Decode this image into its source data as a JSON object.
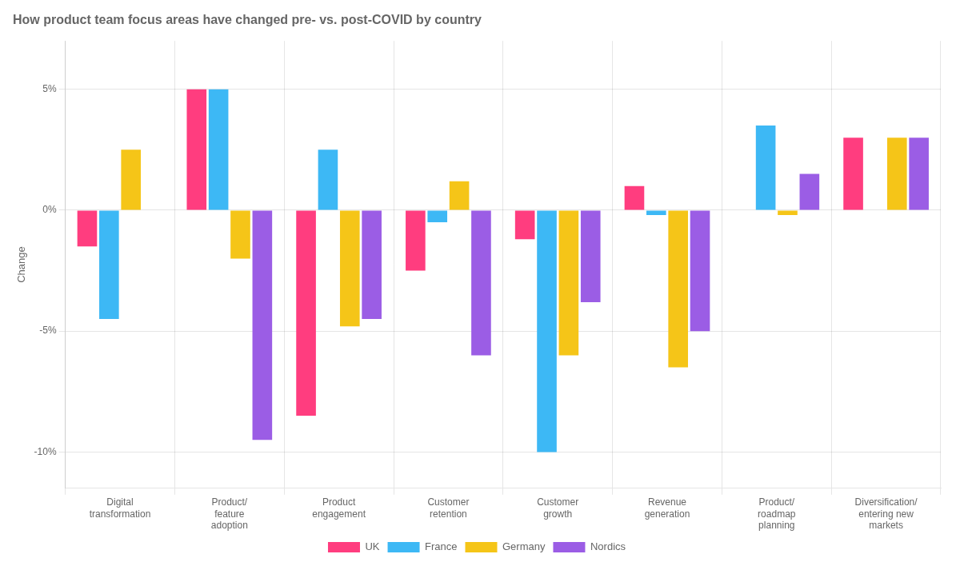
{
  "chart_data": {
    "type": "bar",
    "title": "How product team focus areas have changed pre- vs. post-COVID by country",
    "categories": [
      "Digital\ntransformation",
      "Product/\nfeature\nadoption",
      "Product\nengagement",
      "Customer\nretention",
      "Customer\ngrowth",
      "Revenue\ngeneration",
      "Product/\nroadmap\nplanning",
      "Diversification/\nentering new\nmarkets"
    ],
    "series": [
      {
        "name": "UK",
        "color": "#FF3D7F",
        "values": [
          -1.5,
          5.0,
          -8.5,
          -2.5,
          -1.2,
          1.0,
          0.0,
          3.0
        ]
      },
      {
        "name": "France",
        "color": "#3DB8F5",
        "values": [
          -4.5,
          5.0,
          2.5,
          -0.5,
          -10.0,
          -0.2,
          3.5,
          0.0
        ]
      },
      {
        "name": "Germany",
        "color": "#F5C518",
        "values": [
          2.5,
          -2.0,
          -4.8,
          1.2,
          -6.0,
          -6.5,
          -0.2,
          3.0
        ]
      },
      {
        "name": "Nordics",
        "color": "#9B5DE5",
        "values": [
          0.0,
          -9.5,
          -4.5,
          -6.0,
          -3.8,
          -5.0,
          1.5,
          3.0
        ]
      }
    ],
    "ylabel": "Change",
    "ylim": [
      -11.5,
      7.0
    ],
    "yticks": [
      {
        "value": -10,
        "label": "-10%"
      },
      {
        "value": -5,
        "label": "-5%"
      },
      {
        "value": 0,
        "label": "0%"
      },
      {
        "value": 5,
        "label": "5%"
      }
    ],
    "grid": true,
    "legend": "bottom"
  }
}
